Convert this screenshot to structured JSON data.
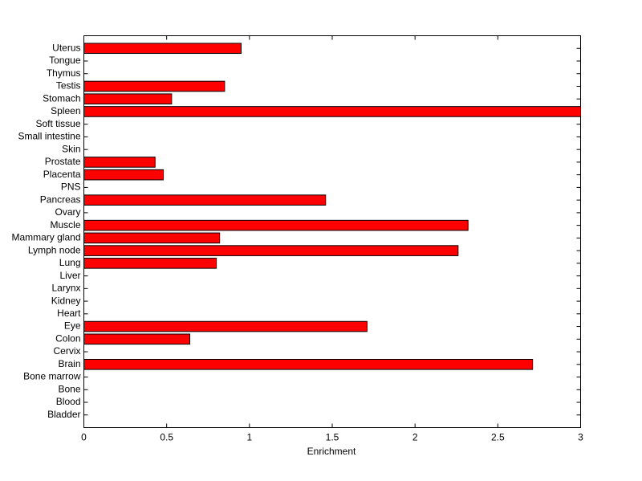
{
  "chart_data": {
    "type": "barh",
    "xlabel": "Enrichment",
    "categories": [
      "Bladder",
      "Blood",
      "Bone",
      "Bone marrow",
      "Brain",
      "Cervix",
      "Colon",
      "Eye",
      "Heart",
      "Kidney",
      "Larynx",
      "Liver",
      "Lung",
      "Lymph node",
      "Mammary gland",
      "Muscle",
      "Ovary",
      "Pancreas",
      "PNS",
      "Placenta",
      "Prostate",
      "Skin",
      "Small intestine",
      "Soft tissue",
      "Spleen",
      "Stomach",
      "Testis",
      "Thymus",
      "Tongue",
      "Uterus"
    ],
    "values": [
      0,
      0,
      0,
      0,
      2.71,
      0,
      0.64,
      1.71,
      0,
      0,
      0,
      0,
      0.8,
      2.26,
      0.82,
      2.32,
      0,
      1.46,
      0,
      0.48,
      0.43,
      0,
      0,
      0,
      3.0,
      0.53,
      0.85,
      0,
      0,
      0.95
    ],
    "color": "#ff0000",
    "xlim": [
      0,
      3
    ],
    "xticks": [
      0,
      0.5,
      1,
      1.5,
      2,
      2.5,
      3
    ]
  }
}
